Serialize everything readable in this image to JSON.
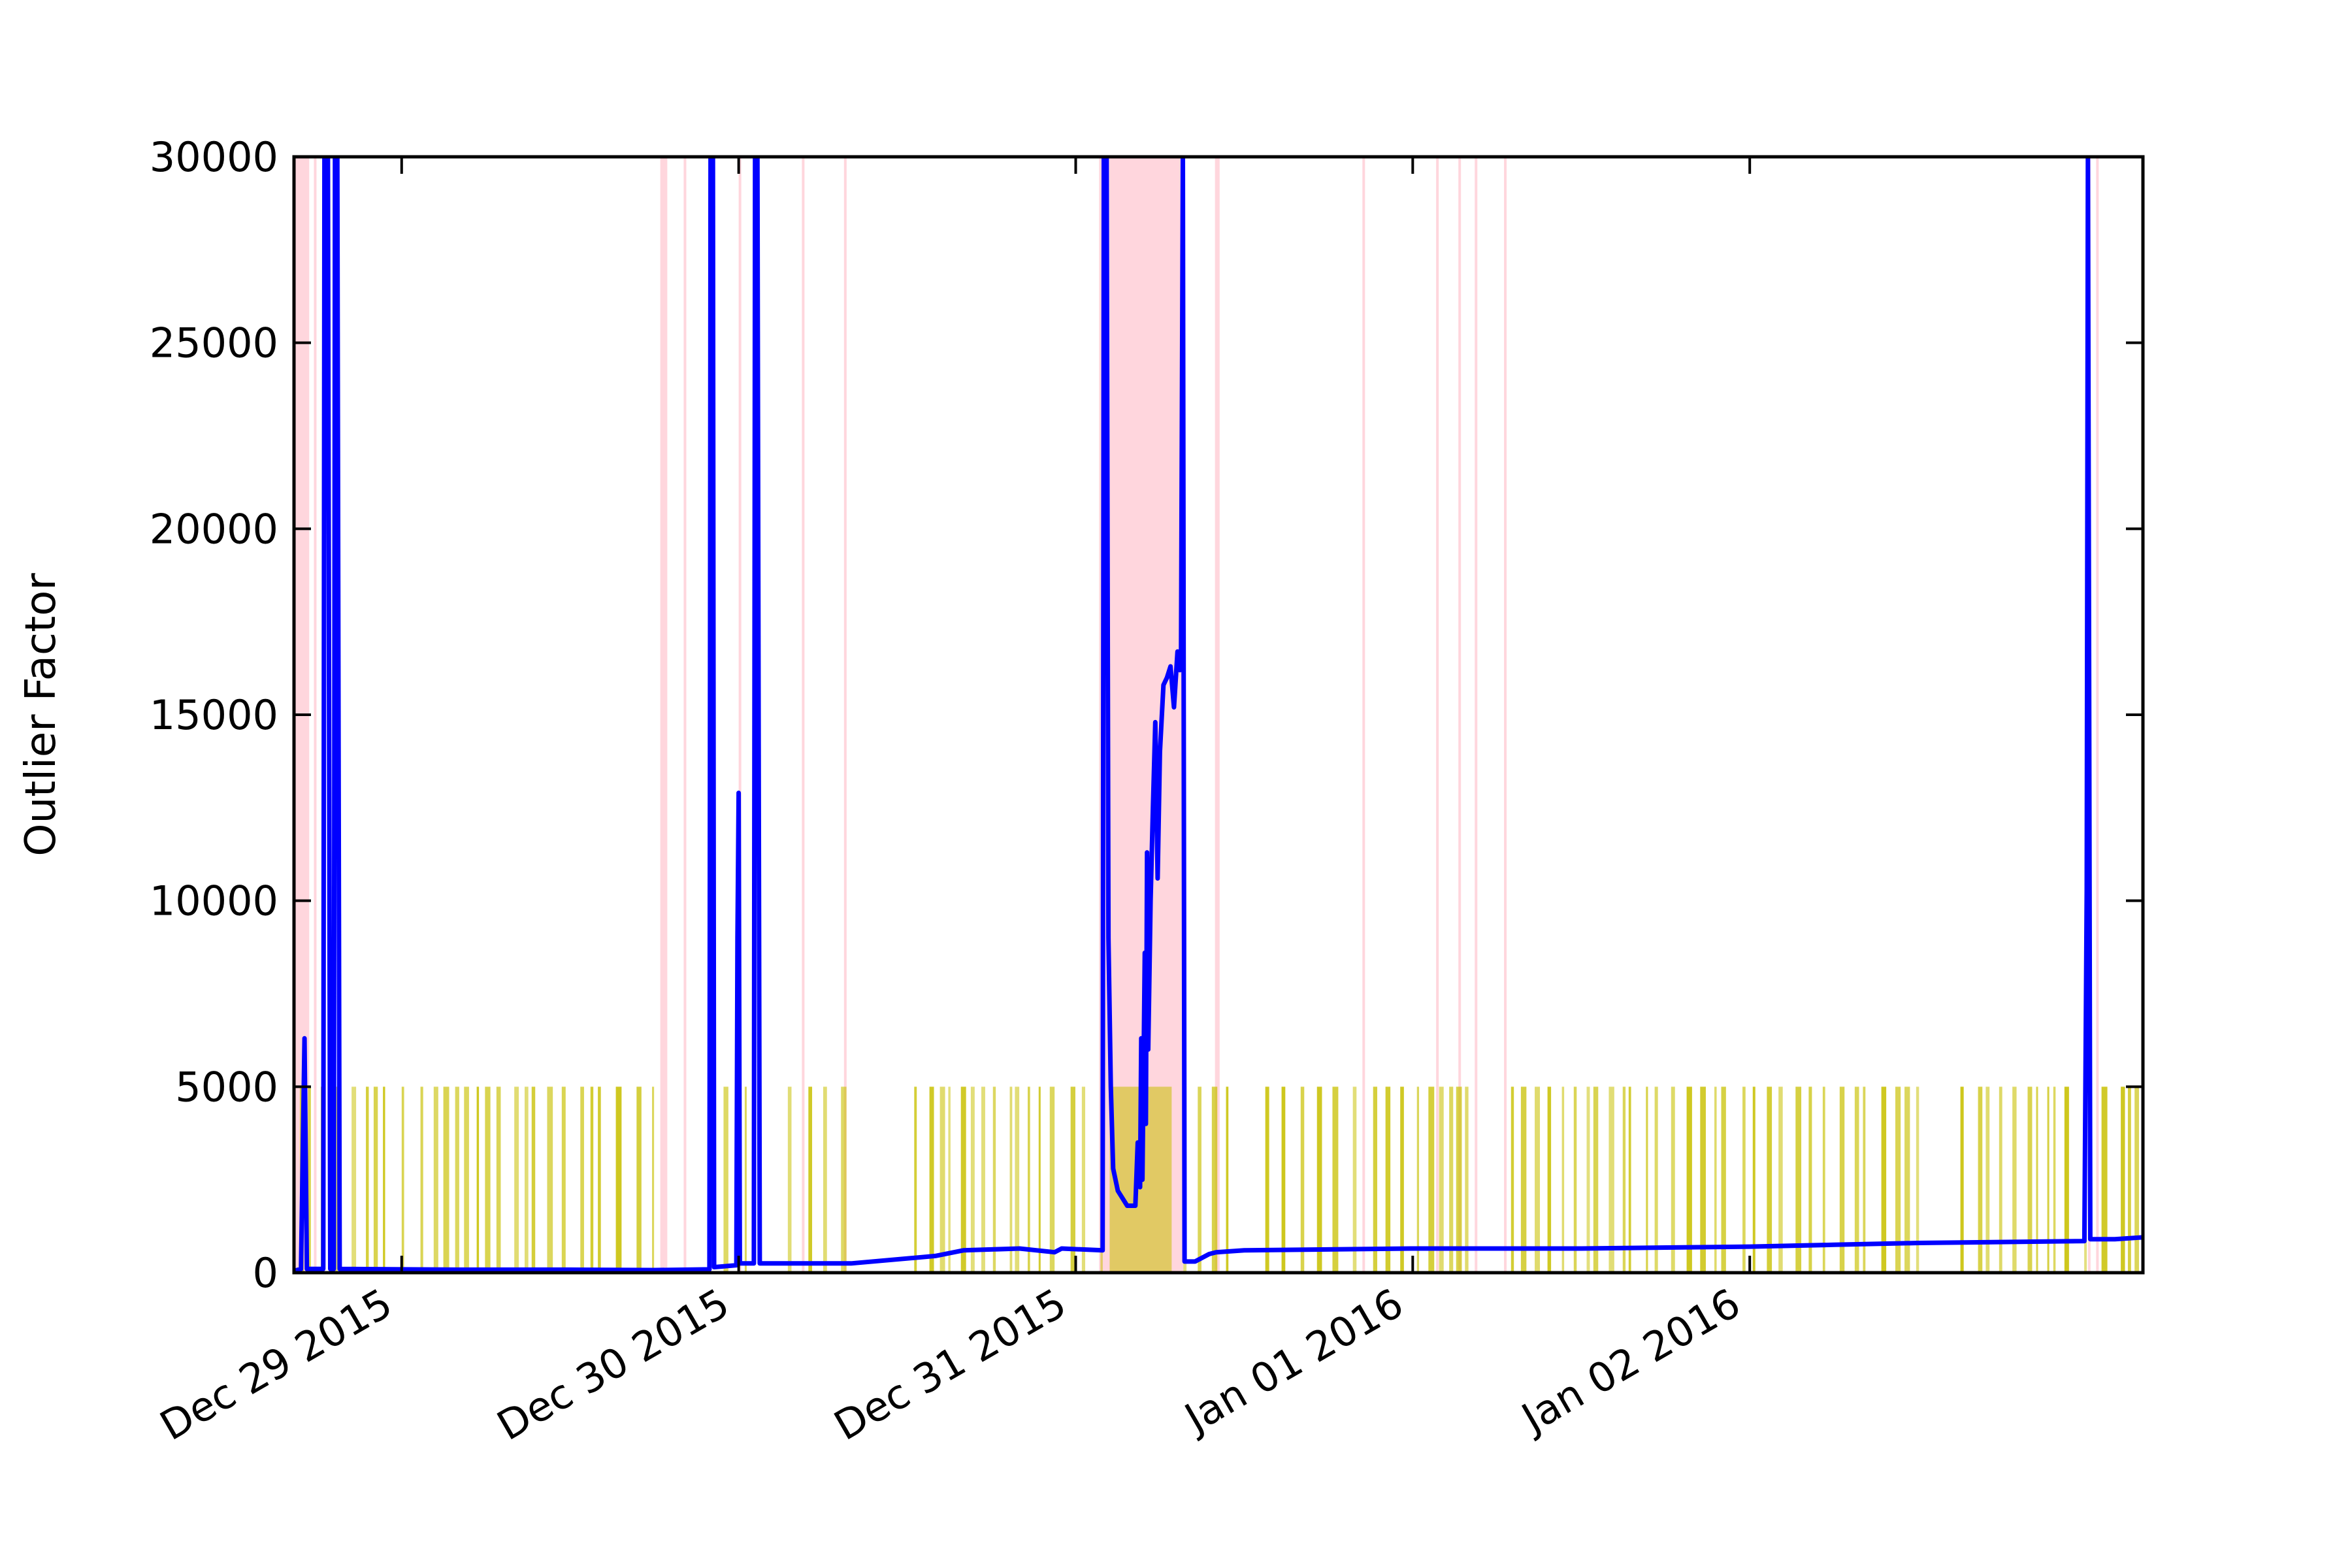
{
  "chart_data": {
    "type": "line",
    "ylabel": "Outlier Factor",
    "xlabel": "",
    "title": "",
    "x_axis": {
      "type": "date",
      "range": [
        "2015-12-28T16:20",
        "2016-01-03T04:00"
      ],
      "ticks": [
        {
          "date": "2015-12-29T00:00",
          "label": "Dec 29 2015"
        },
        {
          "date": "2015-12-30T00:00",
          "label": "Dec 30 2015"
        },
        {
          "date": "2015-12-31T00:00",
          "label": "Dec 31 2015"
        },
        {
          "date": "2016-01-01T00:00",
          "label": "Jan 01 2016"
        },
        {
          "date": "2016-01-02T00:00",
          "label": "Jan 02 2016"
        }
      ]
    },
    "y_axis": {
      "range": [
        0,
        30000
      ],
      "ticks": [
        0,
        5000,
        10000,
        15000,
        20000,
        25000,
        30000
      ],
      "tick_labels": [
        "0",
        "5000",
        "10000",
        "15000",
        "20000",
        "25000",
        "30000"
      ]
    },
    "grid": false,
    "series": [
      {
        "kind": "line",
        "color": "#0000ff",
        "points": [
          [
            "2015-12-28T16:20",
            50
          ],
          [
            "2015-12-28T16:50",
            100
          ],
          [
            "2015-12-28T17:05",
            6300
          ],
          [
            "2015-12-28T17:15",
            100
          ],
          [
            "2015-12-28T18:25",
            100
          ],
          [
            "2015-12-28T18:30",
            30000
          ],
          [
            "2015-12-28T18:45",
            30000
          ],
          [
            "2015-12-28T18:55",
            100
          ],
          [
            "2015-12-28T19:10",
            100
          ],
          [
            "2015-12-28T19:15",
            30000
          ],
          [
            "2015-12-28T19:25",
            30000
          ],
          [
            "2015-12-28T19:35",
            100
          ],
          [
            "2015-12-29T04:00",
            80
          ],
          [
            "2015-12-29T12:00",
            80
          ],
          [
            "2015-12-29T18:00",
            70
          ],
          [
            "2015-12-29T21:55",
            90
          ],
          [
            "2015-12-29T22:00",
            30000
          ],
          [
            "2015-12-29T22:10",
            30000
          ],
          [
            "2015-12-29T22:15",
            150
          ],
          [
            "2015-12-29T23:50",
            200
          ],
          [
            "2015-12-29T23:55",
            9000
          ],
          [
            "2015-12-30T00:00",
            12900
          ],
          [
            "2015-12-30T00:05",
            250
          ],
          [
            "2015-12-30T01:05",
            250
          ],
          [
            "2015-12-30T01:10",
            30000
          ],
          [
            "2015-12-30T01:20",
            30000
          ],
          [
            "2015-12-30T01:30",
            250
          ],
          [
            "2015-12-30T08:00",
            250
          ],
          [
            "2015-12-30T14:00",
            450
          ],
          [
            "2015-12-30T16:00",
            600
          ],
          [
            "2015-12-30T20:00",
            650
          ],
          [
            "2015-12-30T22:30",
            550
          ],
          [
            "2015-12-30T23:00",
            650
          ],
          [
            "2015-12-31T01:55",
            600
          ],
          [
            "2015-12-31T02:00",
            30000
          ],
          [
            "2015-12-31T02:12",
            30000
          ],
          [
            "2015-12-31T02:20",
            9000
          ],
          [
            "2015-12-31T02:30",
            5000
          ],
          [
            "2015-12-31T02:40",
            2800
          ],
          [
            "2015-12-31T03:00",
            2200
          ],
          [
            "2015-12-31T03:40",
            1800
          ],
          [
            "2015-12-31T04:15",
            1800
          ],
          [
            "2015-12-31T04:25",
            3500
          ],
          [
            "2015-12-31T04:35",
            2300
          ],
          [
            "2015-12-31T04:40",
            6300
          ],
          [
            "2015-12-31T04:45",
            2500
          ],
          [
            "2015-12-31T04:55",
            8600
          ],
          [
            "2015-12-31T05:00",
            4000
          ],
          [
            "2015-12-31T05:05",
            11300
          ],
          [
            "2015-12-31T05:10",
            6000
          ],
          [
            "2015-12-31T05:20",
            10000
          ],
          [
            "2015-12-31T05:30",
            12500
          ],
          [
            "2015-12-31T05:40",
            14800
          ],
          [
            "2015-12-31T05:50",
            10600
          ],
          [
            "2015-12-31T06:00",
            14000
          ],
          [
            "2015-12-31T06:15",
            15800
          ],
          [
            "2015-12-31T06:30",
            16000
          ],
          [
            "2015-12-31T06:45",
            16300
          ],
          [
            "2015-12-31T07:00",
            15200
          ],
          [
            "2015-12-31T07:15",
            16700
          ],
          [
            "2015-12-31T07:25",
            16200
          ],
          [
            "2015-12-31T07:30",
            16600
          ],
          [
            "2015-12-31T07:38",
            30000
          ],
          [
            "2015-12-31T07:45",
            300
          ],
          [
            "2015-12-31T08:30",
            300
          ],
          [
            "2015-12-31T09:30",
            500
          ],
          [
            "2015-12-31T10:00",
            550
          ],
          [
            "2015-12-31T12:00",
            600
          ],
          [
            "2016-01-01T00:00",
            650
          ],
          [
            "2016-01-01T12:00",
            650
          ],
          [
            "2016-01-02T00:00",
            700
          ],
          [
            "2016-01-02T06:00",
            750
          ],
          [
            "2016-01-02T12:00",
            800
          ],
          [
            "2016-01-02T23:50",
            850
          ],
          [
            "2016-01-03T00:00",
            10300
          ],
          [
            "2016-01-03T00:05",
            30000
          ],
          [
            "2016-01-03T00:10",
            16100
          ],
          [
            "2016-01-03T00:15",
            900
          ],
          [
            "2016-01-03T02:00",
            900
          ],
          [
            "2016-01-03T04:00",
            950
          ]
        ]
      }
    ],
    "highlight_bands": [
      {
        "color": "#ffc0cb",
        "y_range": [
          0,
          30000
        ],
        "intervals": [
          [
            "2015-12-28T16:20",
            "2015-12-28T17:25"
          ],
          [
            "2015-12-28T17:45",
            "2015-12-28T17:52"
          ],
          [
            "2015-12-29T18:25",
            "2015-12-29T18:55"
          ],
          [
            "2015-12-29T20:05",
            "2015-12-29T20:12"
          ],
          [
            "2015-12-30T00:00",
            "2015-12-30T00:08"
          ],
          [
            "2015-12-30T04:30",
            "2015-12-30T04:40"
          ],
          [
            "2015-12-30T07:30",
            "2015-12-30T07:40"
          ],
          [
            "2015-12-31T01:40",
            "2015-12-31T07:40"
          ],
          [
            "2015-12-31T09:55",
            "2015-12-31T10:15"
          ],
          [
            "2015-12-31T20:25",
            "2015-12-31T20:32"
          ],
          [
            "2016-01-01T01:40",
            "2016-01-01T01:47"
          ],
          [
            "2016-01-01T03:15",
            "2016-01-01T03:22"
          ],
          [
            "2016-01-01T04:25",
            "2016-01-01T04:35"
          ],
          [
            "2016-01-01T06:30",
            "2016-01-01T06:37"
          ],
          [
            "2016-01-03T00:05",
            "2016-01-03T00:15"
          ],
          [
            "2016-01-03T00:40",
            "2016-01-03T00:50"
          ]
        ]
      },
      {
        "color": "#c8c000",
        "y_range": [
          0,
          5000
        ],
        "solid_intervals": [
          [
            "2015-12-31T02:25",
            "2015-12-31T06:50"
          ]
        ],
        "dense_ranges": [
          [
            "2015-12-28T16:45",
            "2015-12-29T18:30"
          ],
          [
            "2015-12-29T21:50",
            "2015-12-30T01:05"
          ],
          [
            "2015-12-30T03:30",
            "2015-12-30T07:45"
          ],
          [
            "2015-12-30T12:30",
            "2015-12-31T01:55"
          ],
          [
            "2015-12-31T07:40",
            "2015-12-31T11:00"
          ],
          [
            "2015-12-31T13:30",
            "2016-01-01T04:00"
          ],
          [
            "2016-01-01T07:00",
            "2016-01-02T12:00"
          ],
          [
            "2016-01-02T15:00",
            "2016-01-03T04:00"
          ]
        ]
      }
    ]
  }
}
